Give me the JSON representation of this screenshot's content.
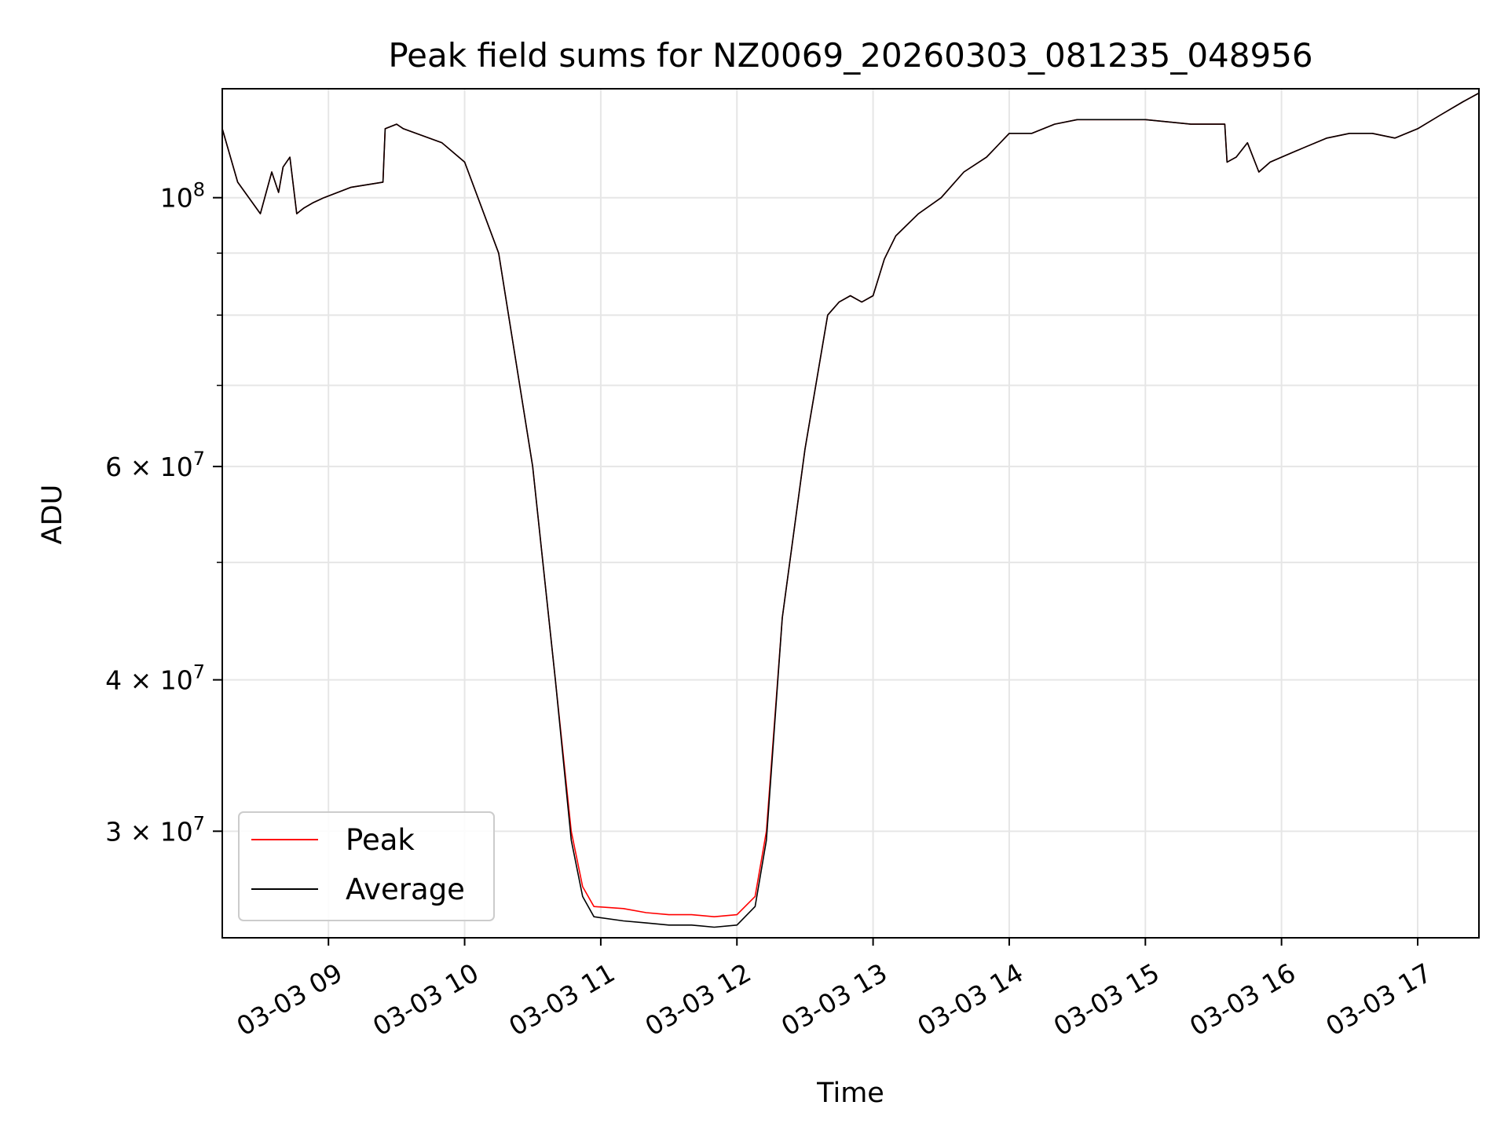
{
  "chart_data": {
    "type": "line",
    "title": "Peak field sums for NZ0069_20260303_081235_048956",
    "xlabel": "Time",
    "ylabel": "ADU",
    "yscale": "log",
    "ylim": [
      24500000,
      123000000
    ],
    "xlim_hours": [
      8.22,
      17.45
    ],
    "xdate": "03-03",
    "grid": true,
    "legend_position": "lower-left",
    "x_ticks": [
      "03-03 09",
      "03-03 10",
      "03-03 11",
      "03-03 12",
      "03-03 13",
      "03-03 14",
      "03-03 15",
      "03-03 16",
      "03-03 17"
    ],
    "y_ticks": [
      {
        "value": 100000000,
        "label_base": "10",
        "label_exp": "8"
      },
      {
        "value": 60000000,
        "label_base": "6 × 10",
        "label_exp": "7"
      },
      {
        "value": 40000000,
        "label_base": "4 × 10",
        "label_exp": "7"
      },
      {
        "value": 30000000,
        "label_base": "3 × 10",
        "label_exp": "7"
      }
    ],
    "y_minor_ticks": [
      90000000,
      80000000,
      70000000,
      50000000
    ],
    "series": [
      {
        "name": "Peak",
        "color": "#ff0000",
        "x": [
          "08:13",
          "08:20",
          "08:30",
          "08:35",
          "08:38",
          "08:40",
          "08:43",
          "08:46",
          "08:49",
          "08:53",
          "08:58",
          "09:10",
          "09:24",
          "09:25",
          "09:30",
          "09:33",
          "09:50",
          "10:00",
          "10:15",
          "10:30",
          "10:40",
          "10:47",
          "10:52",
          "10:57",
          "11:10",
          "11:20",
          "11:30",
          "11:40",
          "11:50",
          "12:00",
          "12:08",
          "12:13",
          "12:20",
          "12:30",
          "12:40",
          "12:45",
          "12:50",
          "12:55",
          "13:00",
          "13:05",
          "13:10",
          "13:20",
          "13:30",
          "13:40",
          "13:50",
          "14:00",
          "14:10",
          "14:20",
          "14:30",
          "14:40",
          "15:00",
          "15:20",
          "15:35",
          "15:36",
          "15:40",
          "15:45",
          "15:50",
          "15:55",
          "16:00",
          "16:10",
          "16:20",
          "16:30",
          "16:40",
          "16:50",
          "17:00",
          "17:10",
          "17:20",
          "17:27"
        ],
        "y": [
          114000000,
          103000000,
          97000000,
          105000000,
          101000000,
          106000000,
          108000000,
          97000000,
          98000000,
          99000000,
          100000000,
          102000000,
          103000000,
          114000000,
          115000000,
          114000000,
          111000000,
          107000000,
          90000000,
          60000000,
          40000000,
          30000000,
          27000000,
          26000000,
          25900000,
          25700000,
          25600000,
          25600000,
          25500000,
          25600000,
          26500000,
          30000000,
          45000000,
          62000000,
          80000000,
          82000000,
          83000000,
          82000000,
          83000000,
          89000000,
          93000000,
          97000000,
          100000000,
          105000000,
          108000000,
          113000000,
          113000000,
          115000000,
          116000000,
          116000000,
          116000000,
          115000000,
          115000000,
          107000000,
          108000000,
          111000000,
          105000000,
          107000000,
          108000000,
          110000000,
          112000000,
          113000000,
          113000000,
          112000000,
          114000000,
          117000000,
          120000000,
          122000000
        ]
      },
      {
        "name": "Average",
        "color": "#000000",
        "x": [
          "08:13",
          "08:20",
          "08:30",
          "08:35",
          "08:38",
          "08:40",
          "08:43",
          "08:46",
          "08:49",
          "08:53",
          "08:58",
          "09:10",
          "09:24",
          "09:25",
          "09:30",
          "09:33",
          "09:50",
          "10:00",
          "10:15",
          "10:30",
          "10:40",
          "10:47",
          "10:52",
          "10:57",
          "11:10",
          "11:20",
          "11:30",
          "11:40",
          "11:50",
          "12:00",
          "12:08",
          "12:13",
          "12:20",
          "12:30",
          "12:40",
          "12:45",
          "12:50",
          "12:55",
          "13:00",
          "13:05",
          "13:10",
          "13:20",
          "13:30",
          "13:40",
          "13:50",
          "14:00",
          "14:10",
          "14:20",
          "14:30",
          "14:40",
          "15:00",
          "15:20",
          "15:35",
          "15:36",
          "15:40",
          "15:45",
          "15:50",
          "15:55",
          "16:00",
          "16:10",
          "16:20",
          "16:30",
          "16:40",
          "16:50",
          "17:00",
          "17:10",
          "17:20",
          "17:27"
        ],
        "y": [
          114000000,
          103000000,
          97000000,
          105000000,
          101000000,
          106000000,
          108000000,
          97000000,
          98000000,
          99000000,
          100000000,
          102000000,
          103000000,
          114000000,
          115000000,
          114000000,
          111000000,
          107000000,
          90000000,
          60000000,
          40000000,
          29500000,
          26500000,
          25500000,
          25300000,
          25200000,
          25100000,
          25100000,
          25000000,
          25100000,
          26000000,
          29500000,
          45000000,
          62000000,
          80000000,
          82000000,
          83000000,
          82000000,
          83000000,
          89000000,
          93000000,
          97000000,
          100000000,
          105000000,
          108000000,
          113000000,
          113000000,
          115000000,
          116000000,
          116000000,
          116000000,
          115000000,
          115000000,
          107000000,
          108000000,
          111000000,
          105000000,
          107000000,
          108000000,
          110000000,
          112000000,
          113000000,
          113000000,
          112000000,
          114000000,
          117000000,
          120000000,
          122000000
        ]
      }
    ]
  }
}
